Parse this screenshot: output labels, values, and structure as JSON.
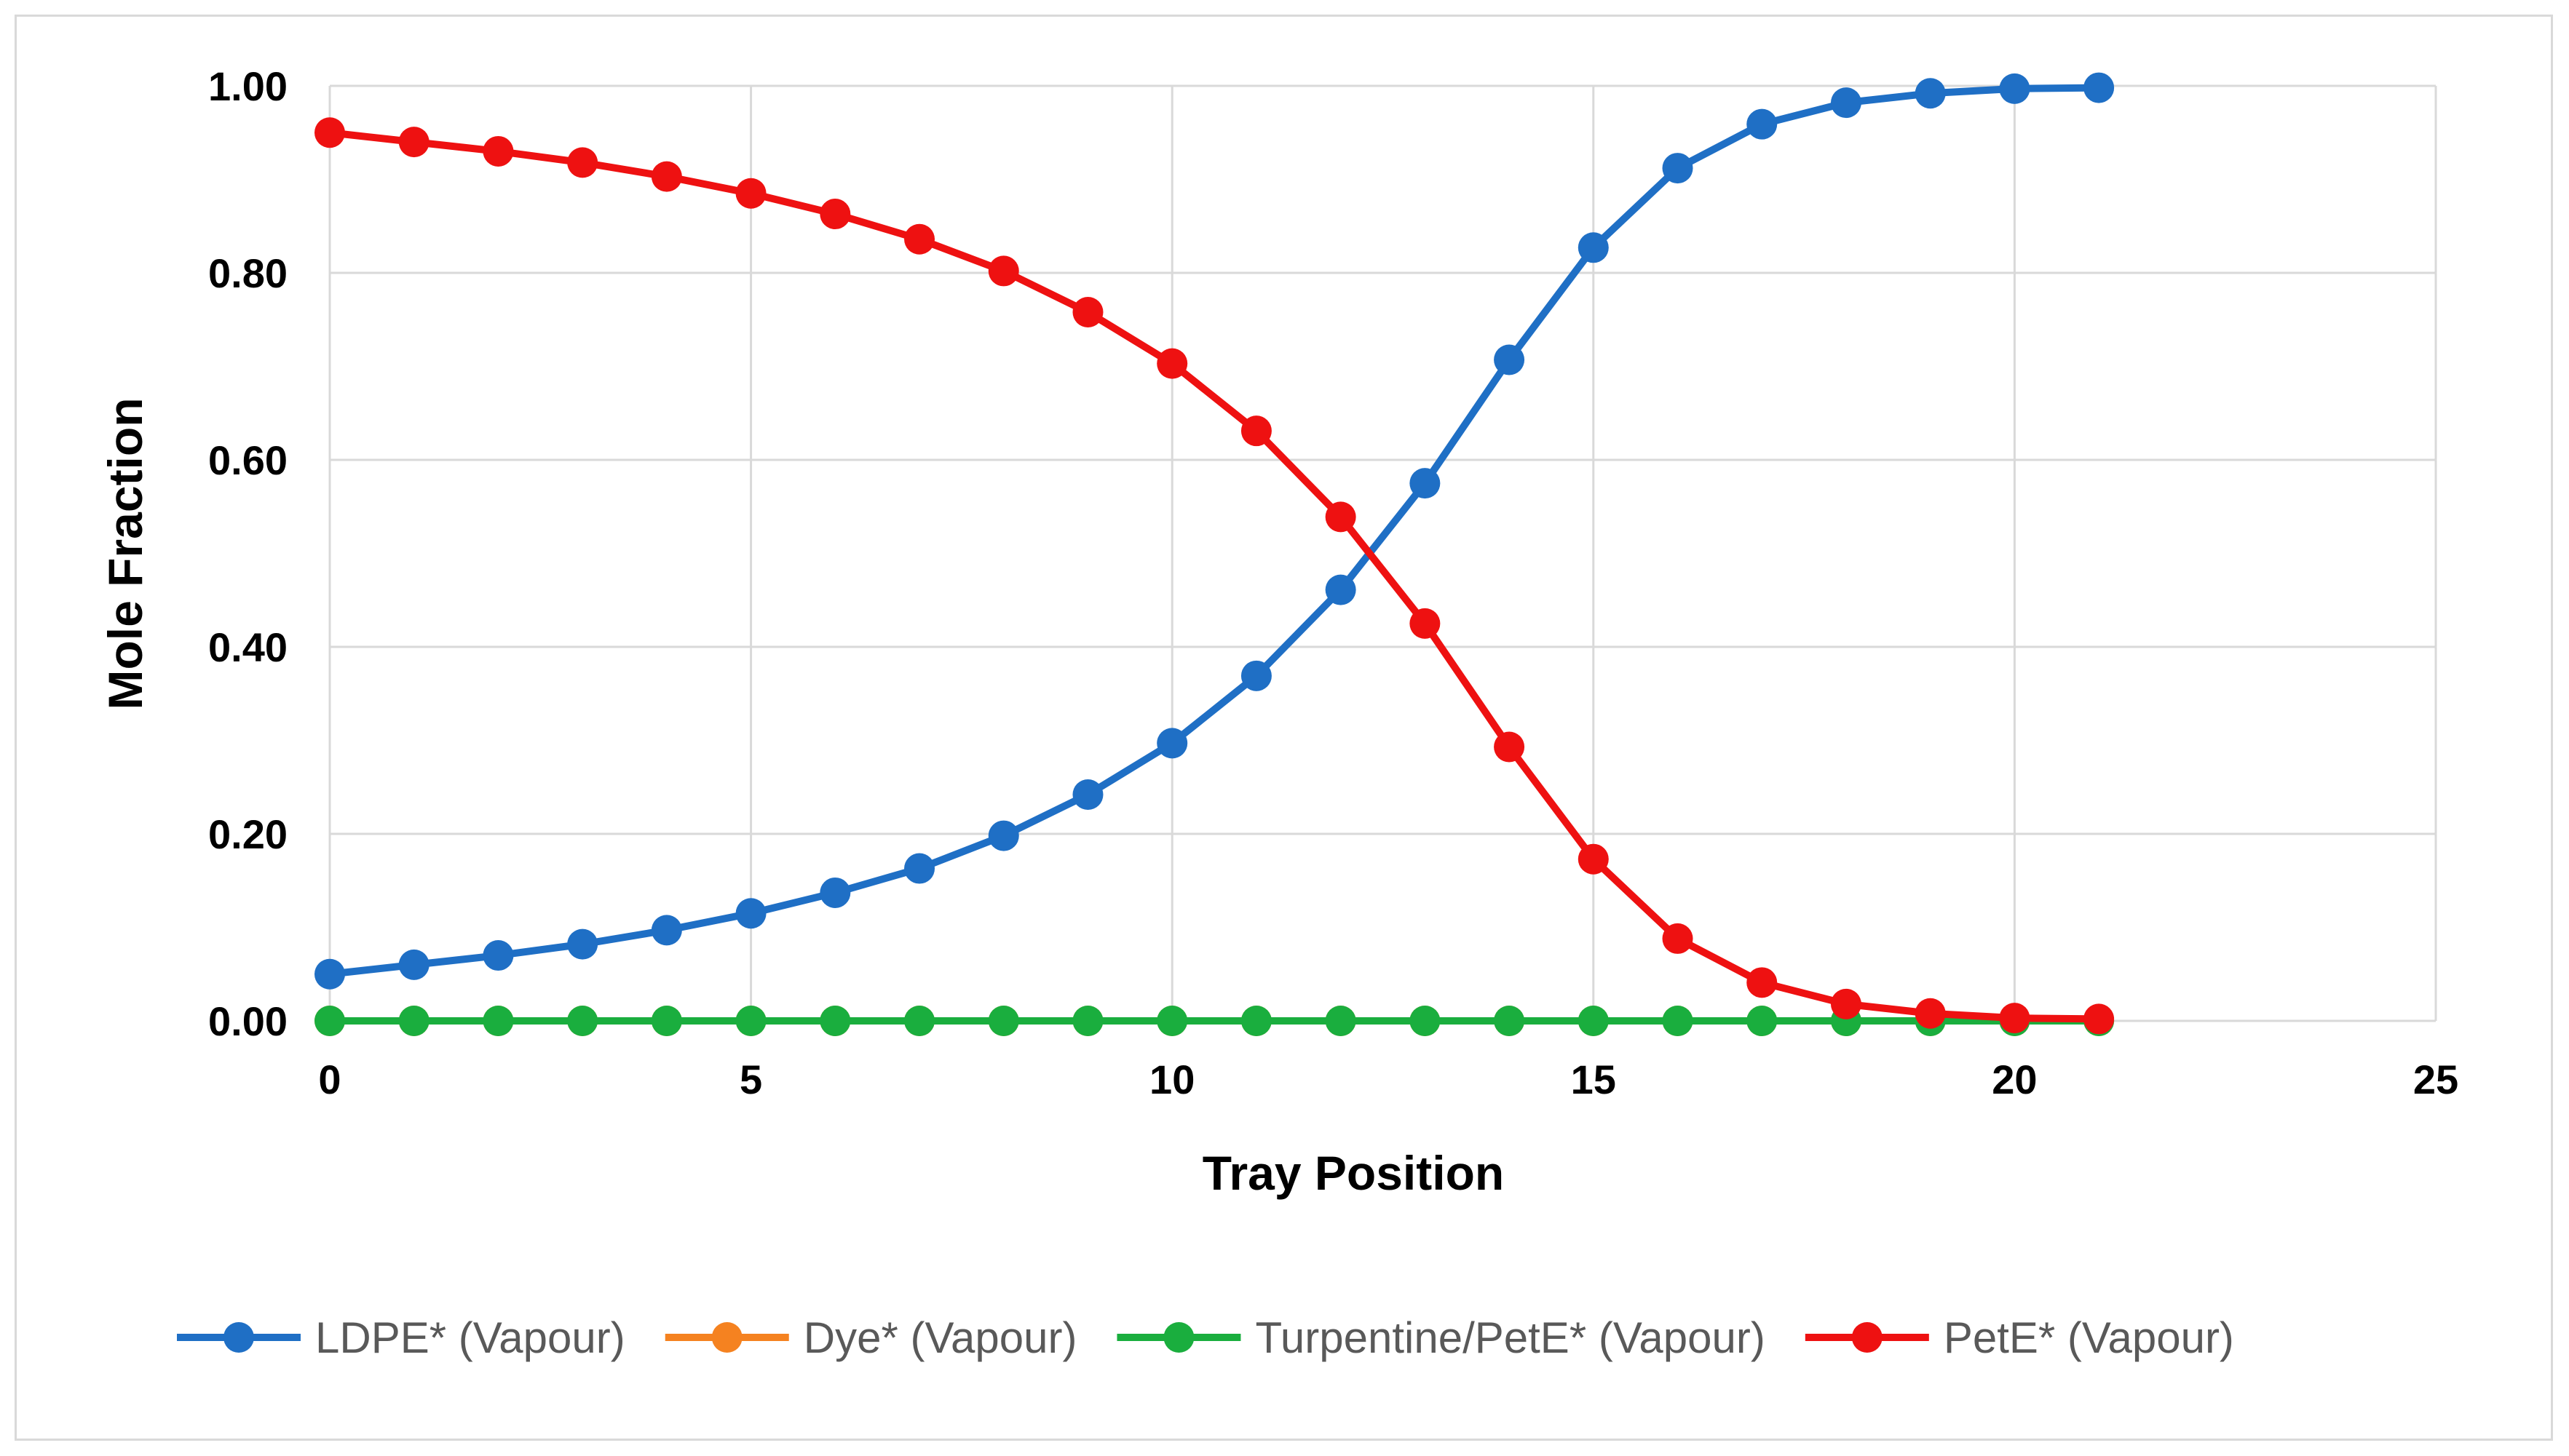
{
  "chart_data": {
    "type": "line",
    "xlabel": "Tray Position",
    "ylabel": "Mole Fraction",
    "xlim": [
      0,
      25
    ],
    "ylim": [
      0,
      1
    ],
    "x_ticks": [
      0,
      5,
      10,
      15,
      20,
      25
    ],
    "y_ticks": [
      0,
      0.2,
      0.4,
      0.6,
      0.8,
      1.0
    ],
    "x_tick_labels": [
      "0",
      "5",
      "10",
      "15",
      "20",
      "25"
    ],
    "y_tick_labels": [
      "0.00",
      "0.20",
      "0.40",
      "0.60",
      "0.80",
      "1.00"
    ],
    "grid": true,
    "legend_position": "bottom",
    "x": [
      0,
      1,
      2,
      3,
      4,
      5,
      6,
      7,
      8,
      9,
      10,
      11,
      12,
      13,
      14,
      15,
      16,
      17,
      18,
      19,
      20,
      21
    ],
    "series": [
      {
        "name": "LDPE* (Vapour)",
        "color": "#1f6fc5",
        "values": [
          0.05,
          0.06,
          0.07,
          0.082,
          0.097,
          0.115,
          0.137,
          0.163,
          0.198,
          0.242,
          0.297,
          0.369,
          0.461,
          0.575,
          0.707,
          0.827,
          0.912,
          0.959,
          0.982,
          0.992,
          0.997,
          0.998
        ]
      },
      {
        "name": "Dye* (Vapour)",
        "color": "#f58220",
        "values": [
          0,
          0,
          0,
          0,
          0,
          0,
          0,
          0,
          0,
          0,
          0,
          0,
          0,
          0,
          0,
          0,
          0,
          0,
          0,
          0,
          0,
          0
        ]
      },
      {
        "name": "Turpentine/PetE* (Vapour)",
        "color": "#1aae3e",
        "values": [
          0,
          0,
          0,
          0,
          0,
          0,
          0,
          0,
          0,
          0,
          0,
          0,
          0,
          0,
          0,
          0,
          0,
          0,
          0,
          0,
          0,
          0
        ]
      },
      {
        "name": "PetE* (Vapour)",
        "color": "#ee1111",
        "values": [
          0.95,
          0.94,
          0.93,
          0.918,
          0.903,
          0.885,
          0.863,
          0.836,
          0.802,
          0.758,
          0.703,
          0.631,
          0.539,
          0.425,
          0.293,
          0.173,
          0.088,
          0.041,
          0.018,
          0.008,
          0.003,
          0.002
        ]
      }
    ]
  }
}
